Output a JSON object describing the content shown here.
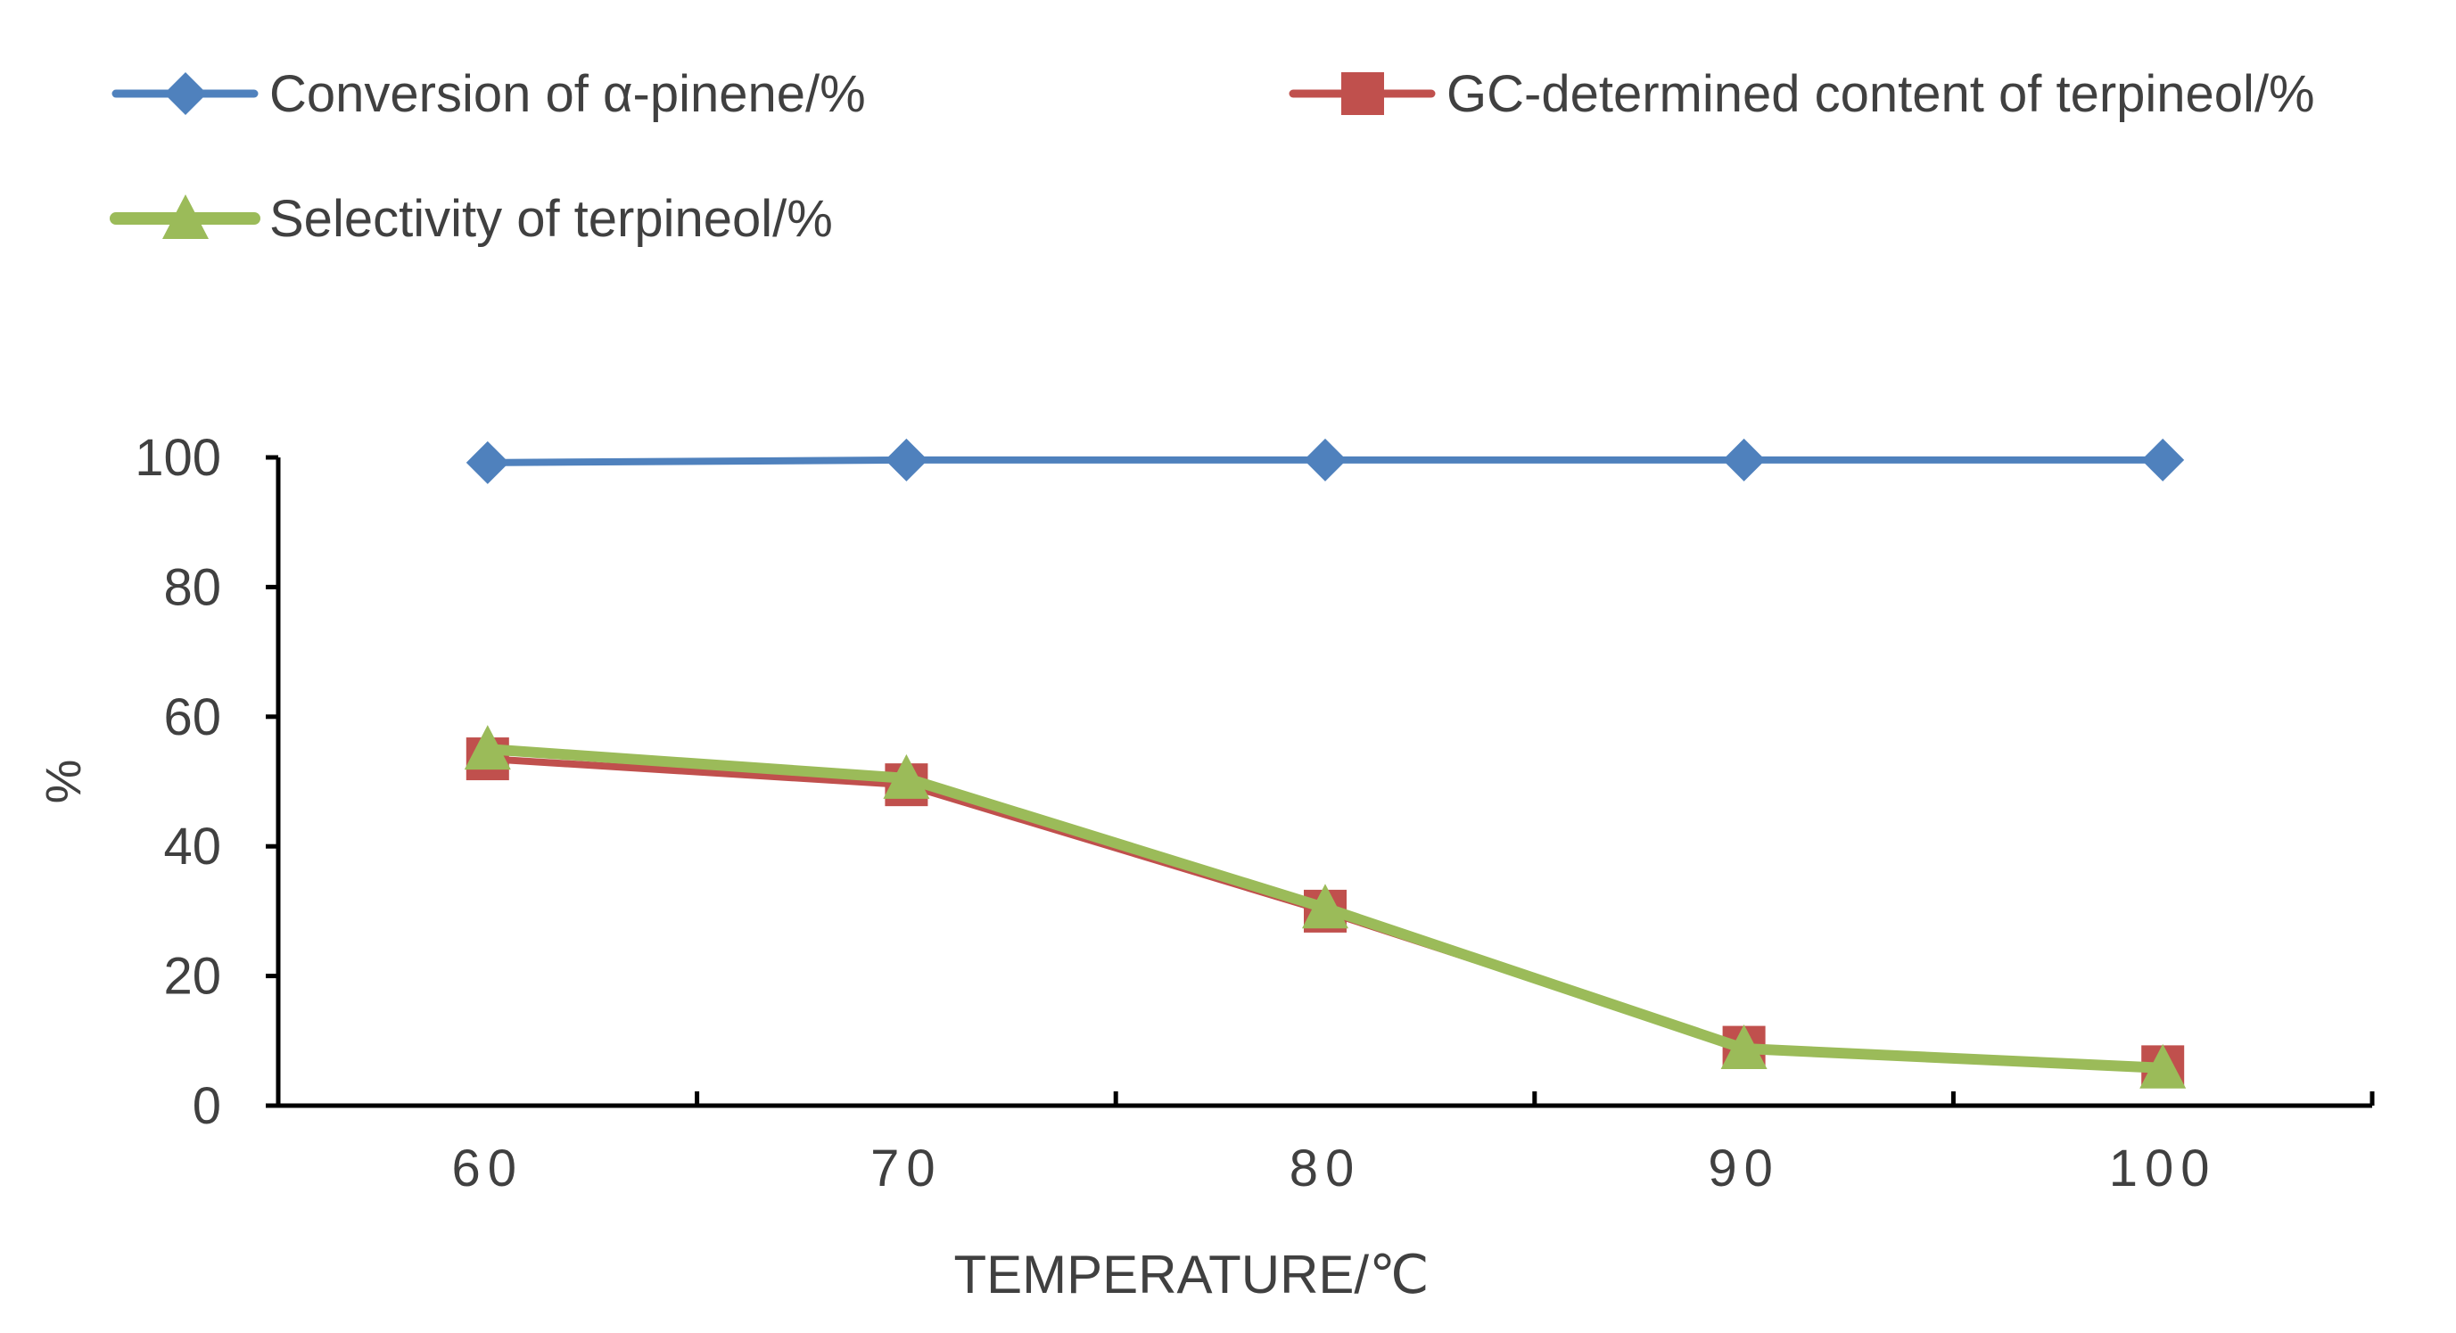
{
  "chart_data": {
    "type": "line",
    "title": "",
    "xlabel": "TEMPERATURE/℃",
    "ylabel": "%",
    "x": [
      60,
      70,
      80,
      90,
      100
    ],
    "categories": [
      "60",
      "70",
      "80",
      "90",
      "100"
    ],
    "yticks": [
      "0",
      "20",
      "40",
      "60",
      "80",
      "100"
    ],
    "ylim": [
      0,
      100
    ],
    "grid": false,
    "legend_position": "top",
    "series": [
      {
        "name": "Conversion of α-pinene/%",
        "values": [
          99.2,
          99.6,
          99.6,
          99.6,
          99.6
        ],
        "color": "#4F81BD",
        "marker": "diamond"
      },
      {
        "name": "GC-determined content of terpineol/%",
        "values": [
          53.5,
          49.5,
          30.0,
          9.0,
          6.0
        ],
        "color": "#C0504D",
        "marker": "square"
      },
      {
        "name": "Selectivity of terpineol/%",
        "values": [
          55.0,
          50.5,
          30.5,
          8.8,
          5.8
        ],
        "color": "#9BBB59",
        "marker": "triangle"
      }
    ]
  }
}
